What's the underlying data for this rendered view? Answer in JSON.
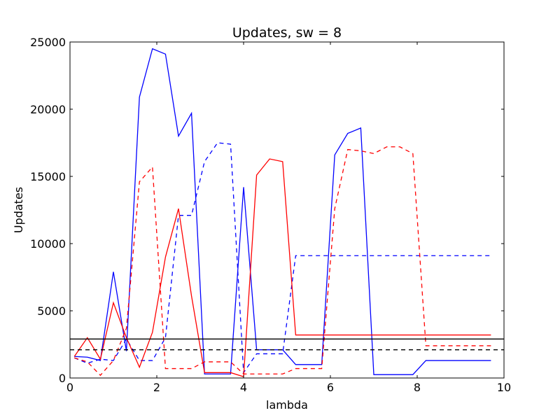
{
  "chart_data": {
    "type": "line",
    "title": "Updates, sw = 8",
    "xlabel": "lambda",
    "ylabel": "Updates",
    "xlim": [
      0,
      10
    ],
    "ylim": [
      0,
      25000
    ],
    "xticks": [
      "0",
      "2",
      "4",
      "6",
      "8",
      "10"
    ],
    "yticks": [
      "0",
      "5000",
      "10000",
      "15000",
      "20000",
      "25000"
    ],
    "grid": false,
    "legend": "none",
    "series": [
      {
        "color": "#0000ff",
        "dash": "solid",
        "points": [
          [
            0.1,
            1600
          ],
          [
            0.4,
            1550
          ],
          [
            0.7,
            1300
          ],
          [
            1.0,
            7900
          ],
          [
            1.3,
            2000
          ],
          [
            1.6,
            20900
          ],
          [
            1.9,
            24500
          ],
          [
            2.2,
            24100
          ],
          [
            2.5,
            18000
          ],
          [
            2.8,
            19700
          ],
          [
            3.1,
            300
          ],
          [
            3.4,
            300
          ],
          [
            3.7,
            300
          ],
          [
            4.0,
            14200
          ],
          [
            4.3,
            2100
          ],
          [
            4.6,
            2100
          ],
          [
            4.9,
            2100
          ],
          [
            5.2,
            1000
          ],
          [
            5.5,
            1000
          ],
          [
            5.8,
            1000
          ],
          [
            6.1,
            16600
          ],
          [
            6.4,
            18200
          ],
          [
            6.7,
            18600
          ],
          [
            7.0,
            250
          ],
          [
            7.3,
            250
          ],
          [
            7.6,
            250
          ],
          [
            7.9,
            250
          ],
          [
            8.2,
            1300
          ],
          [
            8.5,
            1300
          ],
          [
            8.8,
            1300
          ],
          [
            9.1,
            1300
          ],
          [
            9.4,
            1300
          ],
          [
            9.7,
            1300
          ]
        ]
      },
      {
        "color": "#0000ff",
        "dash": "dashed",
        "points": [
          [
            0.1,
            1500
          ],
          [
            0.4,
            1100
          ],
          [
            0.7,
            1400
          ],
          [
            1.0,
            1300
          ],
          [
            1.3,
            2900
          ],
          [
            1.6,
            1300
          ],
          [
            1.9,
            1300
          ],
          [
            2.2,
            3000
          ],
          [
            2.5,
            12100
          ],
          [
            2.8,
            12100
          ],
          [
            3.1,
            16100
          ],
          [
            3.4,
            17500
          ],
          [
            3.7,
            17400
          ],
          [
            4.0,
            400
          ],
          [
            4.3,
            1800
          ],
          [
            4.6,
            1800
          ],
          [
            4.9,
            1800
          ],
          [
            5.2,
            9100
          ],
          [
            5.5,
            9100
          ],
          [
            5.8,
            9100
          ],
          [
            6.1,
            9100
          ],
          [
            6.4,
            9100
          ],
          [
            6.7,
            9100
          ],
          [
            7.0,
            9100
          ],
          [
            7.3,
            9100
          ],
          [
            7.6,
            9100
          ],
          [
            7.9,
            9100
          ],
          [
            8.2,
            9100
          ],
          [
            8.5,
            9100
          ],
          [
            8.8,
            9100
          ],
          [
            9.1,
            9100
          ],
          [
            9.4,
            9100
          ],
          [
            9.7,
            9100
          ]
        ]
      },
      {
        "color": "#ff0000",
        "dash": "solid",
        "points": [
          [
            0.1,
            1600
          ],
          [
            0.4,
            3000
          ],
          [
            0.7,
            1400
          ],
          [
            1.0,
            5600
          ],
          [
            1.3,
            3000
          ],
          [
            1.6,
            800
          ],
          [
            1.9,
            3400
          ],
          [
            2.2,
            9000
          ],
          [
            2.5,
            12600
          ],
          [
            2.8,
            6100
          ],
          [
            3.1,
            400
          ],
          [
            3.4,
            400
          ],
          [
            3.7,
            400
          ],
          [
            4.0,
            100
          ],
          [
            4.3,
            15100
          ],
          [
            4.6,
            16300
          ],
          [
            4.9,
            16100
          ],
          [
            5.2,
            3200
          ],
          [
            5.5,
            3200
          ],
          [
            5.8,
            3200
          ],
          [
            6.1,
            3200
          ],
          [
            6.4,
            3200
          ],
          [
            6.7,
            3200
          ],
          [
            7.0,
            3200
          ],
          [
            7.3,
            3200
          ],
          [
            7.6,
            3200
          ],
          [
            7.9,
            3200
          ],
          [
            8.2,
            3200
          ],
          [
            8.5,
            3200
          ],
          [
            8.8,
            3200
          ],
          [
            9.1,
            3200
          ],
          [
            9.4,
            3200
          ],
          [
            9.7,
            3200
          ]
        ]
      },
      {
        "color": "#ff0000",
        "dash": "dashed",
        "points": [
          [
            0.1,
            1500
          ],
          [
            0.4,
            1200
          ],
          [
            0.7,
            200
          ],
          [
            1.0,
            1300
          ],
          [
            1.3,
            3700
          ],
          [
            1.6,
            14600
          ],
          [
            1.9,
            15700
          ],
          [
            2.2,
            700
          ],
          [
            2.5,
            700
          ],
          [
            2.8,
            700
          ],
          [
            3.1,
            1200
          ],
          [
            3.4,
            1200
          ],
          [
            3.7,
            1200
          ],
          [
            4.0,
            300
          ],
          [
            4.3,
            300
          ],
          [
            4.6,
            300
          ],
          [
            4.9,
            300
          ],
          [
            5.2,
            700
          ],
          [
            5.5,
            700
          ],
          [
            5.8,
            700
          ],
          [
            6.1,
            12600
          ],
          [
            6.4,
            17000
          ],
          [
            6.7,
            16900
          ],
          [
            7.0,
            16700
          ],
          [
            7.3,
            17200
          ],
          [
            7.6,
            17200
          ],
          [
            7.9,
            16700
          ],
          [
            8.2,
            2400
          ],
          [
            8.5,
            2400
          ],
          [
            8.8,
            2400
          ],
          [
            9.1,
            2400
          ],
          [
            9.4,
            2400
          ],
          [
            9.7,
            2400
          ]
        ]
      }
    ],
    "reference_lines": [
      {
        "color": "#000000",
        "dash": "solid",
        "y": 2900
      },
      {
        "color": "#000000",
        "dash": "dashed",
        "y": 2100
      }
    ]
  }
}
